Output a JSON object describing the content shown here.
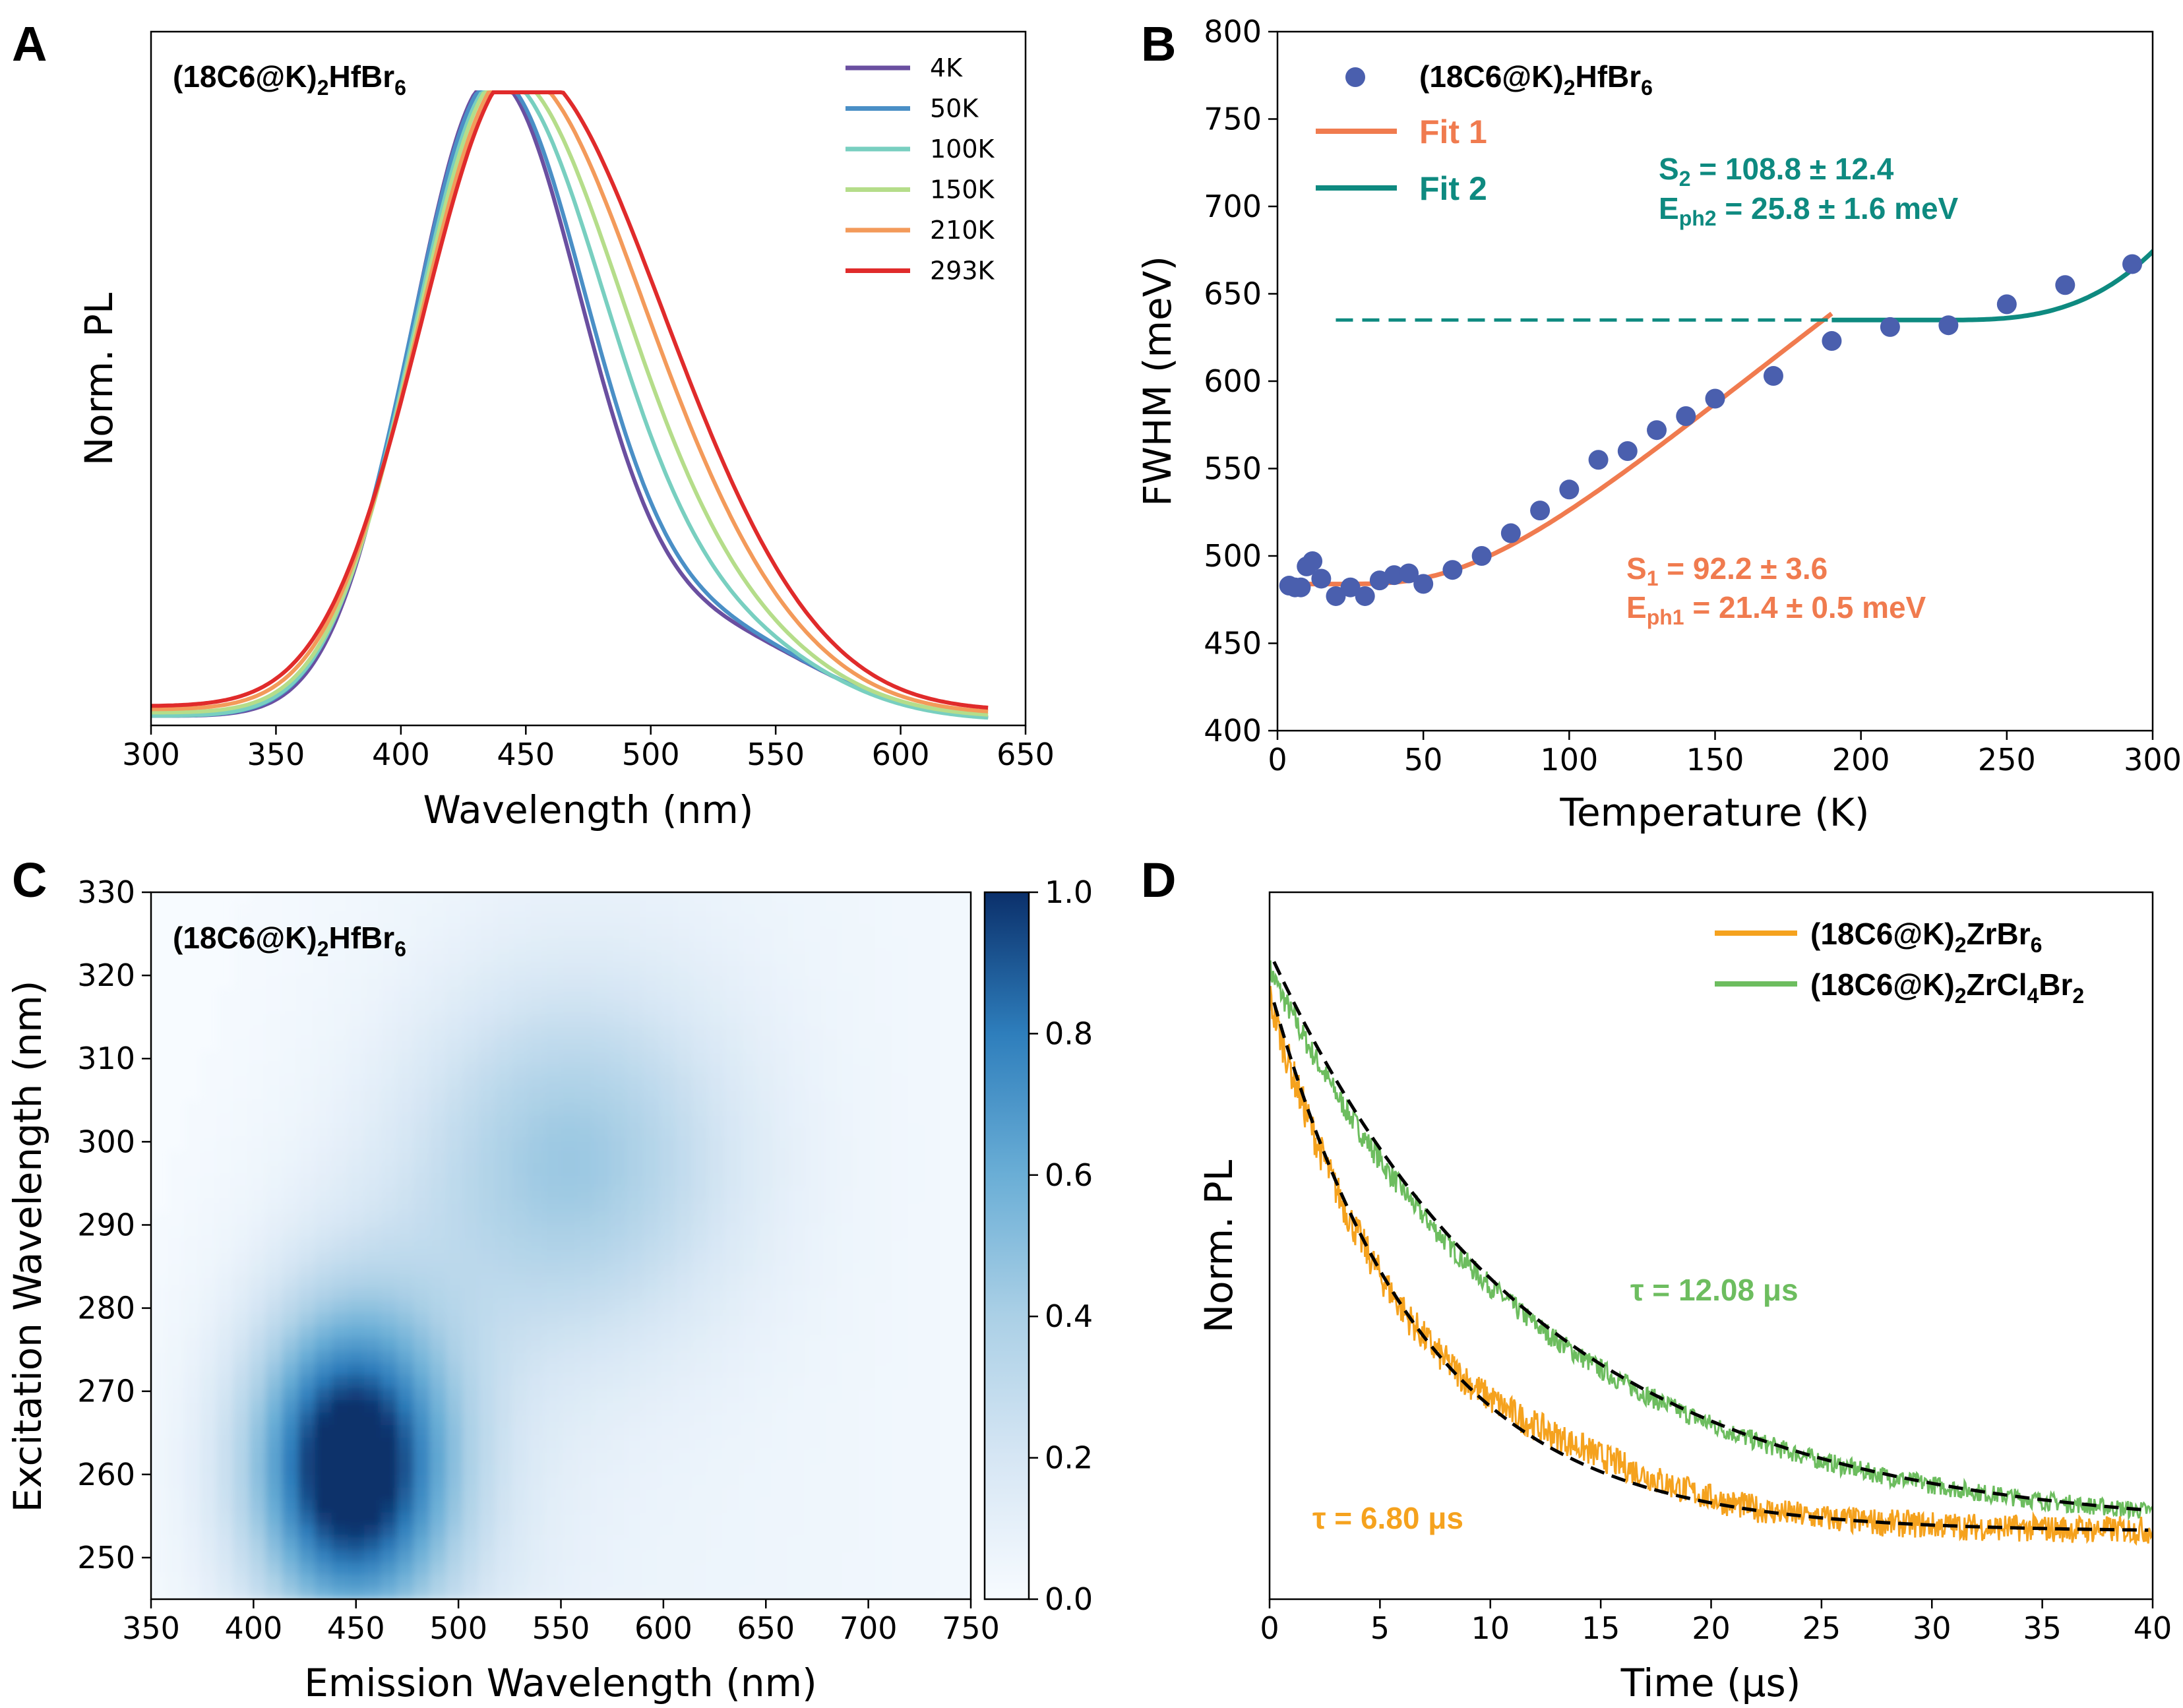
{
  "panels": {
    "A": {
      "letter": "A",
      "compound": {
        "base": "(18C6@K)",
        "s1": "2",
        "mid": "HfBr",
        "s2": "6"
      }
    },
    "B": {
      "letter": "B",
      "compound": {
        "base": "(18C6@K)",
        "s1": "2",
        "mid": "HfBr",
        "s2": "6"
      }
    },
    "C": {
      "letter": "C",
      "compound": {
        "base": "(18C6@K)",
        "s1": "2",
        "mid": "HfBr",
        "s2": "6"
      }
    },
    "D": {
      "letter": "D"
    }
  },
  "chart_data": [
    {
      "panel": "A",
      "type": "line",
      "xlabel": "Wavelength (nm)",
      "ylabel": "Norm. PL",
      "xlim": [
        300,
        650
      ],
      "xticks": [
        "300",
        "350",
        "400",
        "450",
        "500",
        "550",
        "600",
        "650"
      ],
      "legend_position": "top-right",
      "series": [
        {
          "name": "4K",
          "color": "#6a4fa0",
          "peak": 436,
          "sigL": 32,
          "sigR": 36,
          "shoulder": 0.13,
          "base": 0.0
        },
        {
          "name": "50K",
          "color": "#4a8fc6",
          "peak": 437,
          "sigL": 33,
          "sigR": 37,
          "shoulder": 0.13,
          "base": 0.0
        },
        {
          "name": "100K",
          "color": "#78cfc0",
          "peak": 439,
          "sigL": 34,
          "sigR": 42,
          "shoulder": 0.12,
          "base": 0.0
        },
        {
          "name": "150K",
          "color": "#b5dd8a",
          "peak": 441,
          "sigL": 35,
          "sigR": 46,
          "shoulder": 0.11,
          "base": 0.005
        },
        {
          "name": "210K",
          "color": "#f39a5a",
          "peak": 444,
          "sigL": 37,
          "sigR": 50,
          "shoulder": 0.1,
          "base": 0.01
        },
        {
          "name": "293K",
          "color": "#e02b2b",
          "peak": 447,
          "sigL": 39,
          "sigR": 53,
          "shoulder": 0.09,
          "base": 0.015
        }
      ],
      "x_end": 635
    },
    {
      "panel": "B",
      "type": "scatter",
      "xlabel": "Temperature (K)",
      "ylabel": "FWHM (meV)",
      "xlim": [
        0,
        300
      ],
      "ylim": [
        400,
        800
      ],
      "xticks": [
        0,
        50,
        100,
        150,
        200,
        250,
        300
      ],
      "yticks": [
        400,
        450,
        500,
        550,
        600,
        650,
        700,
        750,
        800
      ],
      "series": [
        {
          "name": "(18C6@K)2HfBr6",
          "color": "#4a5fae",
          "x": [
            4,
            6,
            8,
            10,
            12,
            15,
            20,
            25,
            30,
            35,
            40,
            45,
            50,
            60,
            70,
            80,
            90,
            100,
            110,
            120,
            130,
            140,
            150,
            170,
            190,
            210,
            230,
            250,
            270,
            293
          ],
          "y": [
            483,
            482,
            482,
            494,
            497,
            487,
            477,
            482,
            477,
            486,
            489,
            490,
            484,
            492,
            500,
            513,
            526,
            538,
            555,
            560,
            572,
            580,
            590,
            603,
            623,
            631,
            632,
            644,
            655,
            667
          ]
        }
      ],
      "fits": [
        {
          "name": "Fit 1",
          "color": "#f07b4f",
          "S": 92.2,
          "Eph": 21.4,
          "x_range": [
            5,
            190
          ]
        },
        {
          "name": "Fit 2",
          "color": "#0e8a80",
          "S": 108.8,
          "Eph": 25.8,
          "x_range": [
            190,
            300
          ],
          "plateau": 635,
          "dashed_from": 20
        }
      ],
      "legend": {
        "compound": {
          "base": "(18C6@K)",
          "s1": "2",
          "mid": "HfBr",
          "s2": "6"
        },
        "fit1": "Fit 1",
        "fit2": "Fit 2"
      },
      "annotations": {
        "fit2": {
          "line1": {
            "a": "S",
            "sub": "2",
            "b": " = 108.8 ± 12.4"
          },
          "line2": {
            "a": "E",
            "sub": "ph2",
            "b": " = 25.8 ± 1.6 meV"
          }
        },
        "fit1": {
          "line1": {
            "a": "S",
            "sub": "1",
            "b": " = 92.2 ± 3.6"
          },
          "line2": {
            "a": "E",
            "sub": "ph1",
            "b": " = 21.4 ± 0.5 meV"
          }
        }
      }
    },
    {
      "panel": "C",
      "type": "heatmap",
      "xlabel": "Emission Wavelength (nm)",
      "ylabel": "Excitation  Wavelength (nm)",
      "xlim": [
        350,
        750
      ],
      "ylim": [
        245,
        330
      ],
      "xticks": [
        350,
        400,
        450,
        500,
        550,
        600,
        650,
        700,
        750
      ],
      "yticks": [
        250,
        260,
        270,
        280,
        290,
        300,
        310,
        320,
        330
      ],
      "colorbar": {
        "min": 0.0,
        "max": 1.0,
        "ticks": [
          "0.0",
          "0.2",
          "0.4",
          "0.6",
          "0.8",
          "1.0"
        ]
      },
      "peaks": [
        {
          "em": 447,
          "ex": 261,
          "intensity": 1.0
        },
        {
          "em": 555,
          "ex": 298,
          "intensity": 0.38
        }
      ]
    },
    {
      "panel": "D",
      "type": "line",
      "xlabel": "Time (μs)",
      "ylabel": "Norm. PL",
      "xlim": [
        0,
        40
      ],
      "xticks": [
        0,
        5,
        10,
        15,
        20,
        25,
        30,
        35,
        40
      ],
      "series": [
        {
          "name": {
            "base": "(18C6@K)",
            "s1": "2",
            "mid": "ZrBr",
            "s2": "6",
            "tail": ""
          },
          "color": "#f5a21e",
          "tau_us": 6.8
        },
        {
          "name": {
            "base": "(18C6@K)",
            "s1": "2",
            "mid": "ZrCl",
            "s2": "4",
            "tail": "Br",
            "s3": "2"
          },
          "color": "#6dbd5f",
          "tau_us": 12.08
        }
      ],
      "annotations": {
        "green": "τ = 12.08 μs",
        "orange": "τ = 6.80 μs"
      }
    }
  ]
}
